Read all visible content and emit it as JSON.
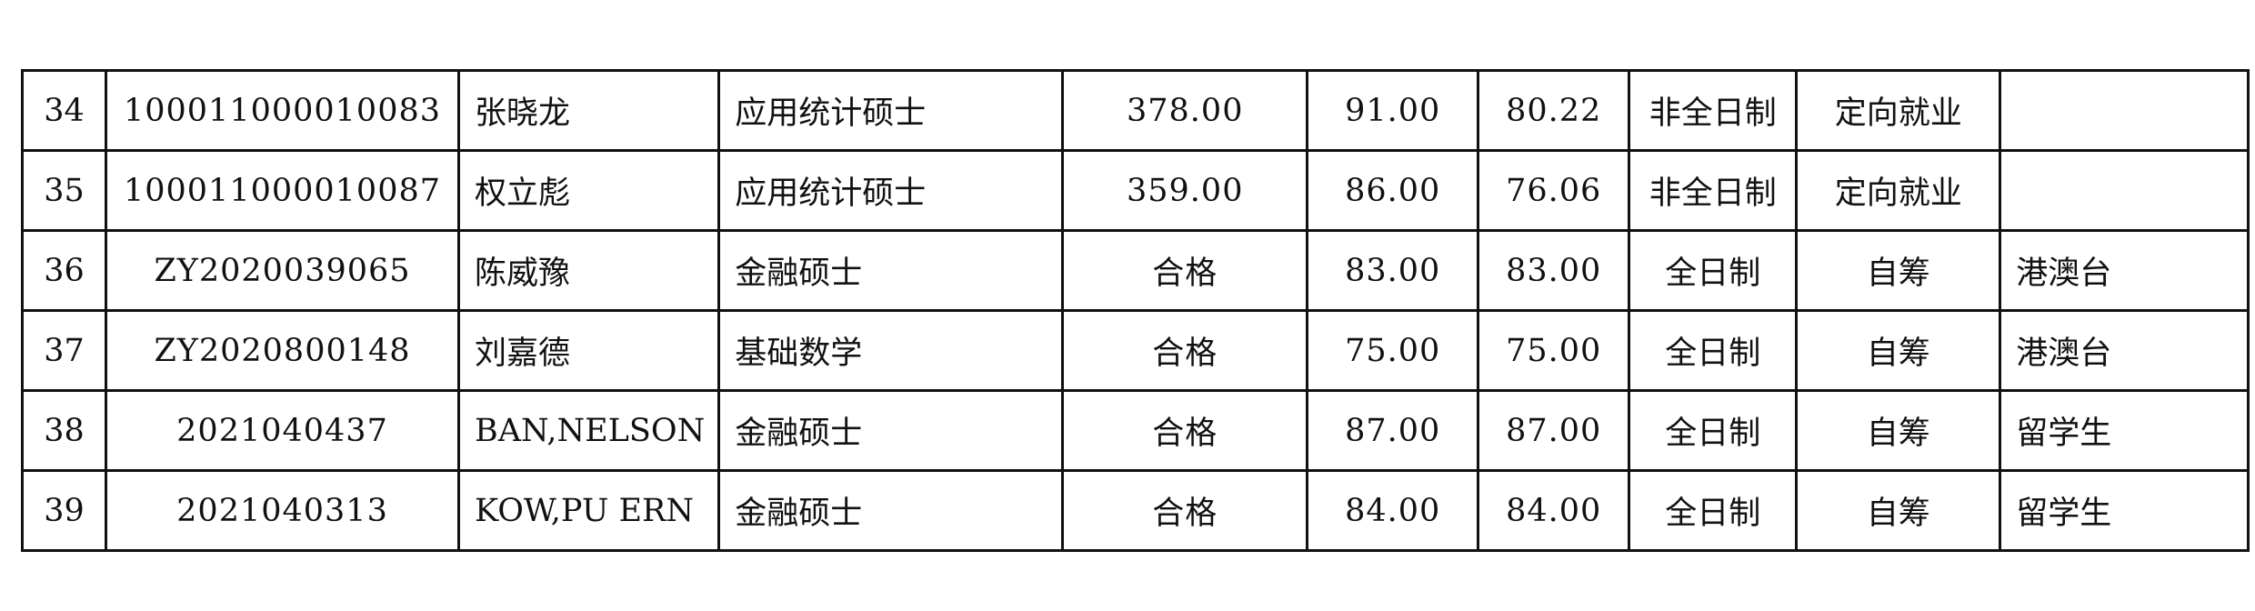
{
  "rows": [
    {
      "no": "34",
      "id": "100011000010083",
      "name": "张晓龙",
      "major": "应用统计硕士",
      "score1": "378.00",
      "score2": "91.00",
      "total": "80.22",
      "mode": "非全日制",
      "plan": "定向就业",
      "note": ""
    },
    {
      "no": "35",
      "id": "100011000010087",
      "name": "权立彪",
      "major": "应用统计硕士",
      "score1": "359.00",
      "score2": "86.00",
      "total": "76.06",
      "mode": "非全日制",
      "plan": "定向就业",
      "note": ""
    },
    {
      "no": "36",
      "id": "ZY2020039065",
      "name": "陈威豫",
      "major": "金融硕士",
      "score1": "合格",
      "score2": "83.00",
      "total": "83.00",
      "mode": "全日制",
      "plan": "自筹",
      "note": "港澳台"
    },
    {
      "no": "37",
      "id": "ZY2020800148",
      "name": "刘嘉德",
      "major": "基础数学",
      "score1": "合格",
      "score2": "75.00",
      "total": "75.00",
      "mode": "全日制",
      "plan": "自筹",
      "note": "港澳台"
    },
    {
      "no": "38",
      "id": "2021040437",
      "name": "BAN,NELSON",
      "major": "金融硕士",
      "score1": "合格",
      "score2": "87.00",
      "total": "87.00",
      "mode": "全日制",
      "plan": "自筹",
      "note": "留学生"
    },
    {
      "no": "39",
      "id": "2021040313",
      "name": "KOW,PU ERN",
      "major": "金融硕士",
      "score1": "合格",
      "score2": "84.00",
      "total": "84.00",
      "mode": "全日制",
      "plan": "自筹",
      "note": "留学生"
    }
  ]
}
